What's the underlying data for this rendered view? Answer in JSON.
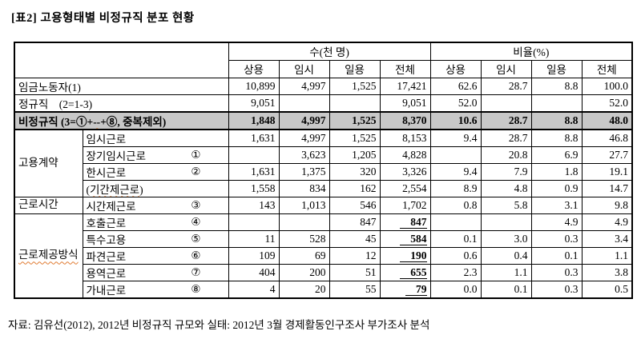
{
  "title": "[표2] 고용형태별 비정규직 분포 현황",
  "footer": "자료: 김유선(2012), 2012년 비정규직 규모와 실태: 2012년 3월 경제활동인구조사 부가조사 분석",
  "colors": {
    "shaded_row": "#c8c8c8",
    "spellcheck_squiggle": "#e07a30",
    "border": "#000000"
  },
  "table": {
    "header": {
      "count_group": "수(천 명)",
      "ratio_group": "비율(%)",
      "sub_columns": [
        "상용",
        "임시",
        "일용",
        "전체"
      ]
    },
    "rows": [
      {
        "kind": "summary",
        "label": [
          {
            "t": "임금노동자(1)"
          }
        ],
        "count": [
          "10,899",
          "4,997",
          "1,525",
          "17,421"
        ],
        "ratio": [
          "62.6",
          "28.7",
          "8.8",
          "100.0"
        ]
      },
      {
        "kind": "summary",
        "label": [
          {
            "t": "정규직    (2=1-3)"
          }
        ],
        "count": [
          "9,051",
          "",
          "",
          "9,051"
        ],
        "ratio": [
          "52.0",
          "",
          "",
          "52.0"
        ]
      },
      {
        "kind": "summary",
        "emphasis": true,
        "label": [
          {
            "t": "비정규직 (3=①+"
          },
          {
            "t": "--",
            "wavy": true
          },
          {
            "t": "+⑧, 중복제외)"
          }
        ],
        "count": [
          "1,848",
          "4,997",
          "1,525",
          "8,370"
        ],
        "ratio": [
          "10.6",
          "28.7",
          "8.8",
          "48.0"
        ]
      },
      {
        "kind": "detail",
        "group": {
          "rowspan": 4,
          "label": [
            {
              "t": "고용계약"
            }
          ]
        },
        "label": [
          {
            "t": "임시근로"
          }
        ],
        "indent": 0,
        "circle": "",
        "count": [
          "1,631",
          "4,997",
          "1,525",
          "8,153"
        ],
        "ratio": [
          "9.4",
          "28.7",
          "8.8",
          "46.8"
        ]
      },
      {
        "kind": "detail",
        "label": [
          {
            "t": "장기임시근로"
          }
        ],
        "indent": 1,
        "circle": "①",
        "count": [
          "",
          "3,623",
          "1,205",
          "4,828"
        ],
        "ratio": [
          "",
          "20.8",
          "6.9",
          "27.7"
        ]
      },
      {
        "kind": "detail",
        "label": [
          {
            "t": "한시근로"
          }
        ],
        "indent": 1,
        "circle": "②",
        "count": [
          "1,631",
          "1,375",
          "320",
          "3,326"
        ],
        "ratio": [
          "9.4",
          "7.9",
          "1.8",
          "19.1"
        ]
      },
      {
        "kind": "detail",
        "label": [
          {
            "t": "("
          },
          {
            "t": "기간제근로",
            "wavy": true
          },
          {
            "t": ")"
          }
        ],
        "indent": 2,
        "circle": "",
        "count": [
          "1,558",
          "834",
          "162",
          "2,554"
        ],
        "ratio": [
          "8.9",
          "4.8",
          "0.9",
          "14.7"
        ]
      },
      {
        "kind": "detail",
        "group": {
          "rowspan": 1,
          "label": [
            {
              "t": "근로시간"
            }
          ]
        },
        "label": [
          {
            "t": "시간제근로"
          }
        ],
        "indent": 1,
        "circle": "③",
        "count": [
          "143",
          "1,013",
          "546",
          "1,702"
        ],
        "ratio": [
          "0.8",
          "5.8",
          "3.1",
          "9.8"
        ]
      },
      {
        "kind": "detail",
        "group": {
          "rowspan": 5,
          "label": [
            {
              "t": "근로제공방식",
              "wavy": true
            }
          ]
        },
        "label": [
          {
            "t": "호출근로"
          }
        ],
        "indent": 1,
        "circle": "④",
        "total_underline": true,
        "count": [
          "",
          "",
          "847",
          "847"
        ],
        "ratio": [
          "",
          "",
          "4.9",
          "4.9"
        ]
      },
      {
        "kind": "detail",
        "label": [
          {
            "t": "특수고용"
          }
        ],
        "indent": 1,
        "circle": "⑤",
        "total_underline": true,
        "count": [
          "11",
          "528",
          "45",
          "584"
        ],
        "ratio": [
          "0.1",
          "3.0",
          "0.3",
          "3.4"
        ]
      },
      {
        "kind": "detail",
        "label": [
          {
            "t": "파견근로"
          }
        ],
        "indent": 1,
        "circle": "⑥",
        "total_underline": true,
        "count": [
          "109",
          "69",
          "12",
          "190"
        ],
        "ratio": [
          "0.6",
          "0.4",
          "0.1",
          "1.1"
        ]
      },
      {
        "kind": "detail",
        "label": [
          {
            "t": "용역근로"
          }
        ],
        "indent": 1,
        "circle": "⑦",
        "total_underline": true,
        "count": [
          "404",
          "200",
          "51",
          "655"
        ],
        "ratio": [
          "2.3",
          "1.1",
          "0.3",
          "3.8"
        ]
      },
      {
        "kind": "detail",
        "label": [
          {
            "t": "가내근로"
          }
        ],
        "indent": 1,
        "circle": "⑧",
        "total_underline": true,
        "count": [
          "4",
          "20",
          "55",
          "79"
        ],
        "ratio": [
          "0.0",
          "0.1",
          "0.3",
          "0.5"
        ]
      }
    ]
  }
}
